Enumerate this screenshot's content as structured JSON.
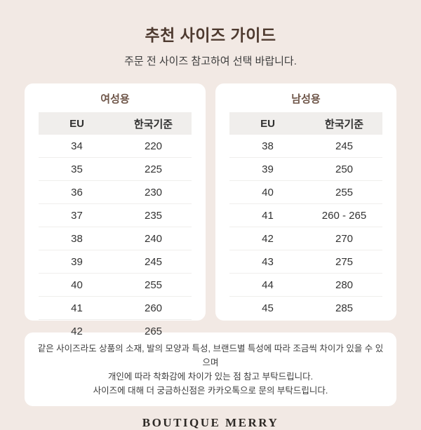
{
  "page": {
    "title": "추천 사이즈 가이드",
    "subtitle": "주문 전 사이즈 참고하여 선택 바랍니다."
  },
  "tables": [
    {
      "title": "여성용",
      "columns": [
        "EU",
        "한국기준"
      ],
      "rows": [
        [
          "34",
          "220"
        ],
        [
          "35",
          "225"
        ],
        [
          "36",
          "230"
        ],
        [
          "37",
          "235"
        ],
        [
          "38",
          "240"
        ],
        [
          "39",
          "245"
        ],
        [
          "40",
          "255"
        ],
        [
          "41",
          "260"
        ],
        [
          "42",
          "265"
        ]
      ]
    },
    {
      "title": "남성용",
      "columns": [
        "EU",
        "한국기준"
      ],
      "rows": [
        [
          "38",
          "245"
        ],
        [
          "39",
          "250"
        ],
        [
          "40",
          "255"
        ],
        [
          "41",
          "260 - 265"
        ],
        [
          "42",
          "270"
        ],
        [
          "43",
          "275"
        ],
        [
          "44",
          "280"
        ],
        [
          "45",
          "285"
        ]
      ]
    }
  ],
  "notice": {
    "lines": [
      "같은 사이즈라도 상품의 소재, 발의 모양과 특성, 브랜드별 특성에 따라 조금씩 차이가 있을 수 있으며",
      "개인에 따라 착화감에 차이가 있는 점 참고 부탁드립니다.",
      "사이즈에 대해 더 궁금하신점은 카카오톡으로 문의 부탁드립니다."
    ]
  },
  "footer": {
    "brand": "BOUTIQUE MERRY"
  },
  "colors": {
    "background": "#f2e9e4",
    "card": "#ffffff",
    "title_brown": "#4e3a2f",
    "card_title_brown": "#6e5548",
    "table_header_bg": "#f0eeec",
    "row_divider": "#efeeec",
    "body_text": "#333333"
  }
}
